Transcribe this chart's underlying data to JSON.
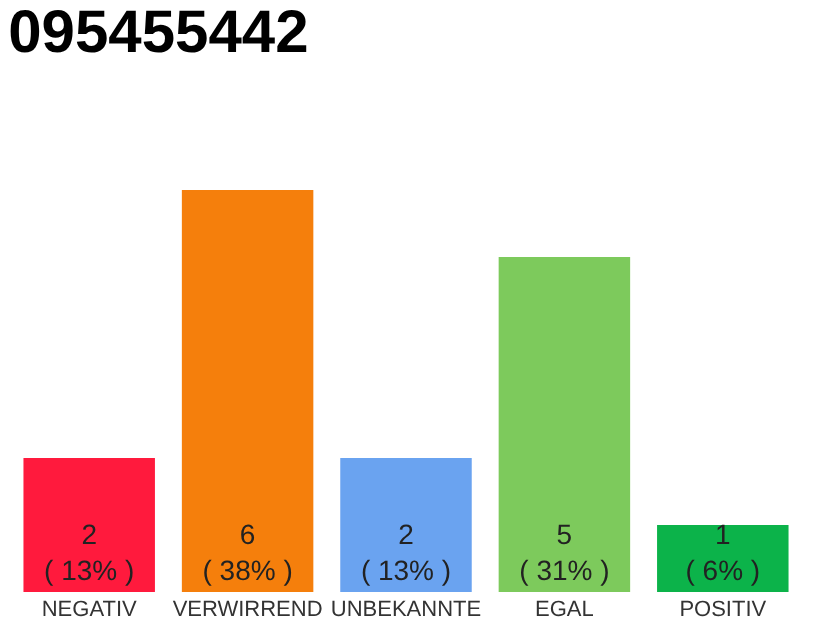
{
  "chart_data": {
    "type": "bar",
    "title": "095455442",
    "categories": [
      "NEGATIV",
      "VERWIRREND",
      "UNBEKANNTE",
      "EGAL",
      "POSITIV"
    ],
    "values": [
      2,
      6,
      2,
      5,
      1
    ],
    "colors": [
      "#ff1a3d",
      "#f57f0c",
      "#6aa3f0",
      "#7dca5c",
      "#0cb34a"
    ],
    "value_labels": [
      "2\n( 13% )",
      "6\n( 38% )",
      "2\n( 13% )",
      "5\n( 31% )",
      "1\n( 6% )"
    ],
    "ylim": [
      0,
      6
    ]
  }
}
